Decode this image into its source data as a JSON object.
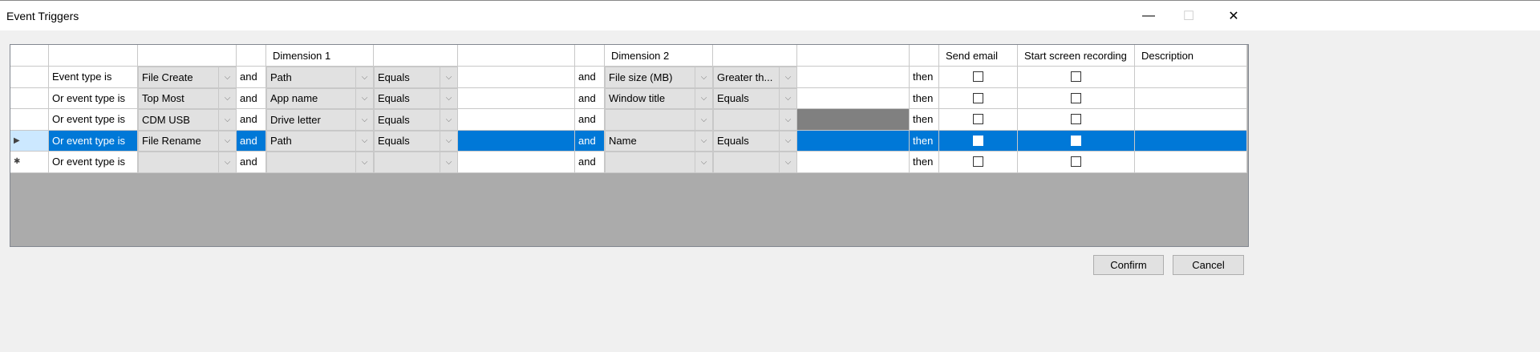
{
  "window": {
    "title": "Event Triggers",
    "minimize": "—",
    "maximize": "☐",
    "close": "✕"
  },
  "headers": [
    "",
    "",
    "",
    "Dimension 1",
    "",
    "",
    "",
    "Dimension 2",
    "",
    "",
    "",
    "Send email",
    "Start screen recording",
    "Description"
  ],
  "rows": [
    {
      "label": "Event type is",
      "event": "File Create",
      "and1": "and",
      "dim1": "Path",
      "op1": "Equals",
      "val1": "",
      "and2": "and",
      "dim2": "File size (MB)",
      "op2": "Greater th...",
      "val2": "",
      "then": "then",
      "send_email": false,
      "record": false,
      "description": "",
      "marker": ""
    },
    {
      "label": "Or event type is",
      "event": "Top Most",
      "and1": "and",
      "dim1": "App name",
      "op1": "Equals",
      "val1": "",
      "and2": "and",
      "dim2": "Window title",
      "op2": "Equals",
      "val2": "",
      "then": "then",
      "send_email": false,
      "record": false,
      "description": "",
      "marker": ""
    },
    {
      "label": "Or event type is",
      "event": "CDM USB",
      "and1": "and",
      "dim1": "Drive letter",
      "op1": "Equals",
      "val1": "",
      "and2": "and",
      "dim2": "",
      "op2": "",
      "val2": "",
      "val2_disabled": true,
      "then": "then",
      "send_email": false,
      "record": false,
      "description": "",
      "marker": ""
    },
    {
      "label": "Or event type is",
      "event": "File Rename",
      "and1": "and",
      "dim1": "Path",
      "op1": "Equals",
      "val1": "",
      "and2": "and",
      "dim2": "Name",
      "op2": "Equals",
      "val2": "",
      "then": "then",
      "send_email": false,
      "record": false,
      "description": "",
      "marker": "▶",
      "selected": true
    },
    {
      "label": "Or event type is",
      "event": "",
      "and1": "and",
      "dim1": "",
      "op1": "",
      "val1": "",
      "and2": "and",
      "dim2": "",
      "op2": "",
      "val2": "",
      "then": "then",
      "send_email": false,
      "record": false,
      "description": "",
      "marker": "✱"
    }
  ],
  "buttons": {
    "confirm": "Confirm",
    "cancel": "Cancel"
  },
  "colors": {
    "selection": "#0078d7",
    "row_header_selected": "#cce8ff",
    "empty_area": "#ababab"
  }
}
